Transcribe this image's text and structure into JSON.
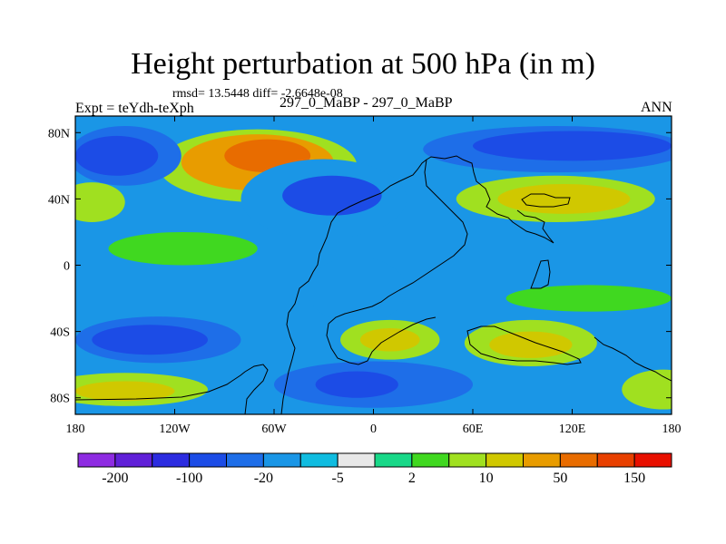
{
  "chart_data": {
    "type": "heatmap",
    "title": "Height perturbation at 500 hPa (in m)",
    "stats_text": "rmsd= 13.5448 diff= -2.6648e-08",
    "left_label": "Expt = teYdh-teXph",
    "center_label": "297_0_MaBP - 297_0_MaBP",
    "right_label": "ANN",
    "x_range": [
      -180,
      180
    ],
    "y_range": [
      -90,
      90
    ],
    "x_ticks": [
      {
        "value": -180,
        "label": "180"
      },
      {
        "value": -120,
        "label": "120W"
      },
      {
        "value": -60,
        "label": "60W"
      },
      {
        "value": 0,
        "label": "0"
      },
      {
        "value": 60,
        "label": "60E"
      },
      {
        "value": 120,
        "label": "120E"
      },
      {
        "value": 180,
        "label": "180"
      }
    ],
    "y_ticks": [
      {
        "value": 80,
        "label": "80N"
      },
      {
        "value": 40,
        "label": "40N"
      },
      {
        "value": 0,
        "label": "0"
      },
      {
        "value": -40,
        "label": "40S"
      },
      {
        "value": -80,
        "label": "80S"
      }
    ],
    "colorbar": {
      "colors": [
        "#8e2be2",
        "#6020d8",
        "#2c2ce0",
        "#1c4ce6",
        "#1e6ee8",
        "#1a96e6",
        "#10bce0",
        "#e8e8e8",
        "#18d888",
        "#40d820",
        "#a0e020",
        "#d0c800",
        "#e89c00",
        "#e86c00",
        "#e84000",
        "#e81000"
      ],
      "labels": [
        "-200",
        "-100",
        "-20",
        "-5",
        "2",
        "10",
        "50",
        "150"
      ]
    },
    "features": [
      {
        "name": "arctic-positive-ring",
        "lon": -70,
        "lat": 60,
        "rlon": 60,
        "rlat": 22,
        "level": 10
      },
      {
        "name": "arctic-positive-mid",
        "lon": -70,
        "lat": 62,
        "rlon": 46,
        "rlat": 17,
        "level": 12
      },
      {
        "name": "arctic-positive-core",
        "lon": -64,
        "lat": 66,
        "rlon": 26,
        "rlat": 10,
        "level": 13
      },
      {
        "name": "north-pacific-low-outer",
        "lon": -150,
        "lat": 66,
        "rlon": 34,
        "rlat": 18,
        "level": 4
      },
      {
        "name": "north-pacific-low",
        "lon": -155,
        "lat": 66,
        "rlon": 25,
        "rlat": 12,
        "level": 3
      },
      {
        "name": "siberia-low-outer",
        "lon": 110,
        "lat": 70,
        "rlon": 80,
        "rlat": 14,
        "level": 4
      },
      {
        "name": "siberia-low",
        "lon": 120,
        "lat": 72,
        "rlon": 60,
        "rlat": 9,
        "level": 3
      },
      {
        "name": "asia-high-outer",
        "lon": 110,
        "lat": 40,
        "rlon": 60,
        "rlat": 14,
        "level": 10
      },
      {
        "name": "asia-high",
        "lon": 115,
        "lat": 40,
        "rlon": 40,
        "rlat": 9,
        "level": 11
      },
      {
        "name": "north-atlantic-low-outer",
        "lon": -30,
        "lat": 40,
        "rlon": 50,
        "rlat": 24,
        "level": 5
      },
      {
        "name": "north-atlantic-low",
        "lon": -25,
        "lat": 42,
        "rlon": 30,
        "rlat": 12,
        "level": 3
      },
      {
        "name": "west-pacific-high",
        "lon": -170,
        "lat": 38,
        "rlon": 20,
        "rlat": 12,
        "level": 10
      },
      {
        "name": "subtropic-band",
        "lon": -115,
        "lat": 10,
        "rlon": 45,
        "rlat": 10,
        "level": 9
      },
      {
        "name": "south-atlantic-low",
        "lon": -10,
        "lat": -15,
        "rlon": 30,
        "rlat": 20,
        "level": 5
      },
      {
        "name": "tropical-green-east",
        "lon": 130,
        "lat": -20,
        "rlon": 50,
        "rlat": 8,
        "level": 9
      },
      {
        "name": "south-pacific-low-outer",
        "lon": -130,
        "lat": -45,
        "rlon": 50,
        "rlat": 14,
        "level": 4
      },
      {
        "name": "south-pacific-low",
        "lon": -135,
        "lat": -45,
        "rlon": 35,
        "rlat": 9,
        "level": 3
      },
      {
        "name": "south-atlantic-high",
        "lon": 10,
        "lat": -45,
        "rlon": 30,
        "rlat": 12,
        "level": 10
      },
      {
        "name": "south-atlantic-high-core",
        "lon": 10,
        "lat": -45,
        "rlon": 18,
        "rlat": 7,
        "level": 11
      },
      {
        "name": "indian-ocean-high",
        "lon": 95,
        "lat": -47,
        "rlon": 40,
        "rlat": 14,
        "level": 10
      },
      {
        "name": "indian-ocean-high-core",
        "lon": 95,
        "lat": -48,
        "rlon": 25,
        "rlat": 8,
        "level": 11
      },
      {
        "name": "antarctic-low-outer",
        "lon": 0,
        "lat": -72,
        "rlon": 60,
        "rlat": 14,
        "level": 4
      },
      {
        "name": "antarctic-low",
        "lon": -10,
        "lat": -72,
        "rlon": 25,
        "rlat": 8,
        "level": 3
      },
      {
        "name": "antarctic-high-west",
        "lon": -150,
        "lat": -75,
        "rlon": 50,
        "rlat": 10,
        "level": 10
      },
      {
        "name": "antarctic-high-west-core",
        "lon": -150,
        "lat": -76,
        "rlon": 30,
        "rlat": 6,
        "level": 11
      },
      {
        "name": "antarctic-high-east",
        "lon": 175,
        "lat": -75,
        "rlon": 25,
        "rlat": 12,
        "level": 10
      }
    ]
  }
}
